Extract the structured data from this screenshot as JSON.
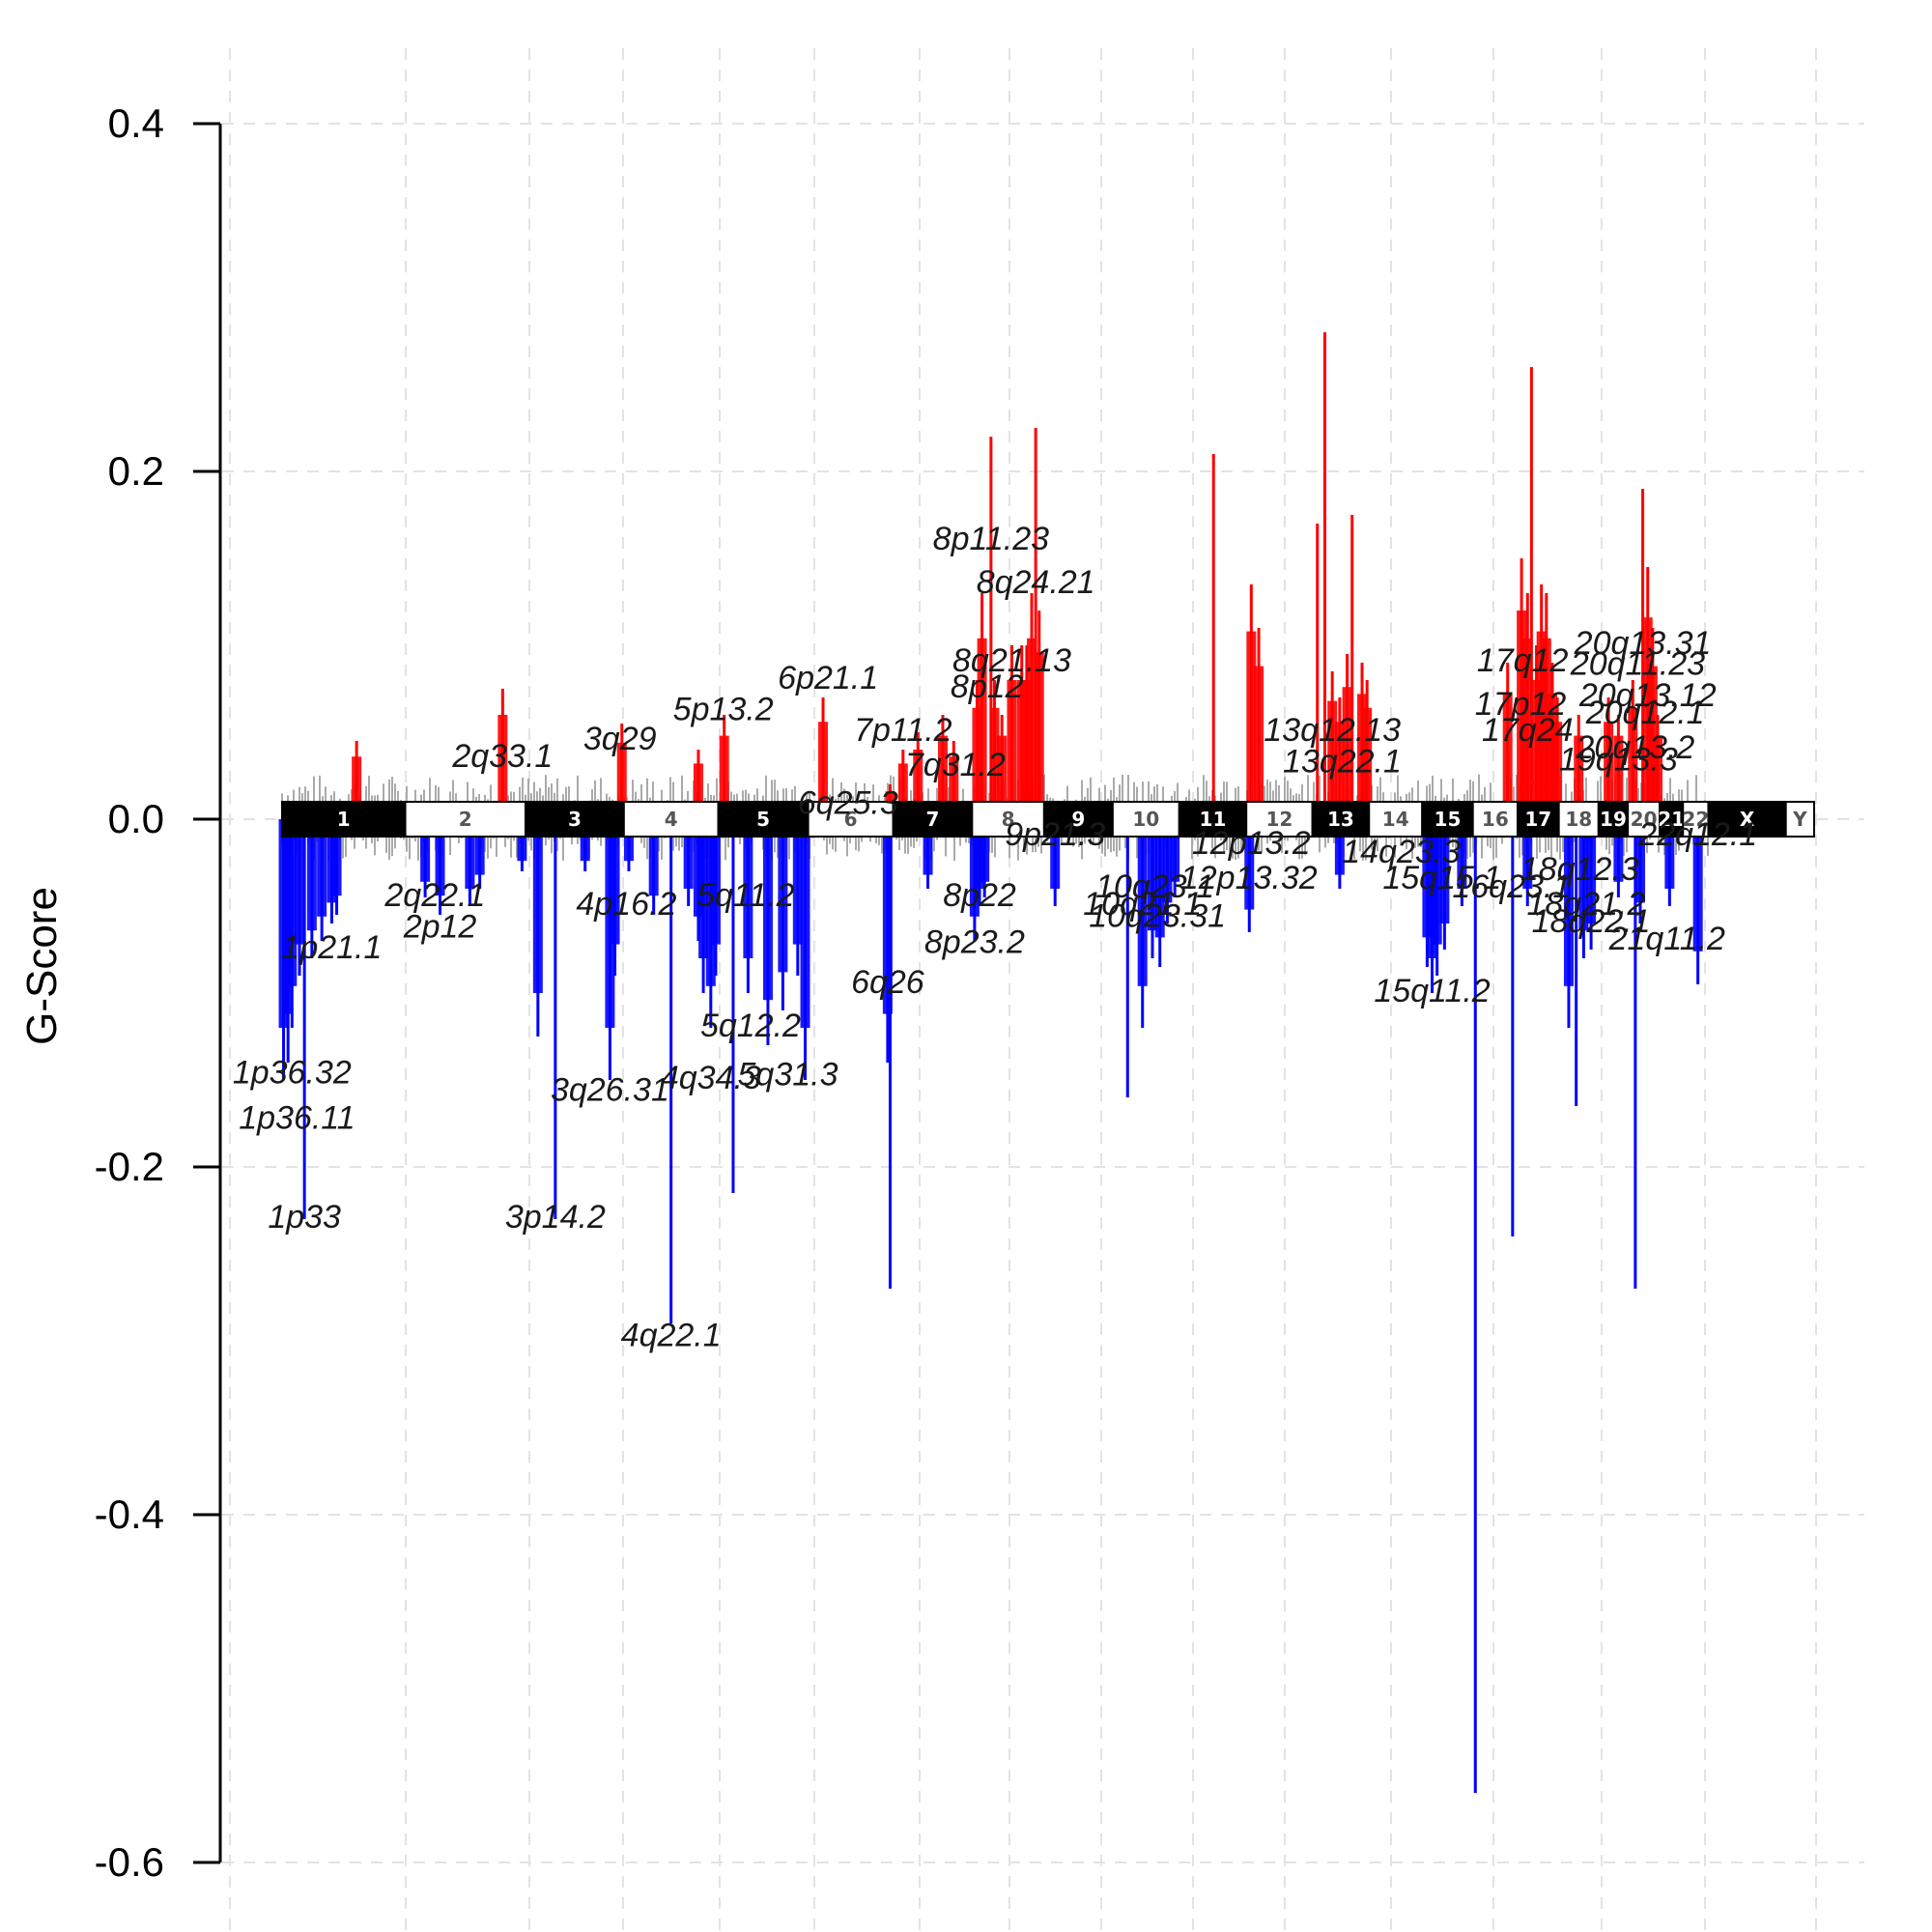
{
  "chart_data": {
    "type": "bar",
    "title": "",
    "xlabel": "",
    "ylabel": "G-Score",
    "ylim": [
      -0.6,
      0.4
    ],
    "yticks": [
      "0.4",
      "0.2",
      "0.0",
      "-0.2",
      "-0.4",
      "-0.6"
    ],
    "grid": true,
    "colors": {
      "amplification": "#ff0000",
      "deletion": "#0000ff",
      "background": "#aaaaaa",
      "band_dark": "#000000",
      "band_light": "#ffffff"
    },
    "chromosomes": [
      {
        "name": "1",
        "size": 248
      },
      {
        "name": "2",
        "size": 242
      },
      {
        "name": "3",
        "size": 198
      },
      {
        "name": "4",
        "size": 190
      },
      {
        "name": "5",
        "size": 181
      },
      {
        "name": "6",
        "size": 171
      },
      {
        "name": "7",
        "size": 159
      },
      {
        "name": "8",
        "size": 145
      },
      {
        "name": "9",
        "size": 138
      },
      {
        "name": "10",
        "size": 134
      },
      {
        "name": "11",
        "size": 135
      },
      {
        "name": "12",
        "size": 133
      },
      {
        "name": "13",
        "size": 114
      },
      {
        "name": "14",
        "size": 107
      },
      {
        "name": "15",
        "size": 102
      },
      {
        "name": "16",
        "size": 90
      },
      {
        "name": "17",
        "size": 83
      },
      {
        "name": "18",
        "size": 80
      },
      {
        "name": "19",
        "size": 59
      },
      {
        "name": "20",
        "size": 64
      },
      {
        "name": "21",
        "size": 47
      },
      {
        "name": "22",
        "size": 51
      },
      {
        "name": "X",
        "size": 156
      },
      {
        "name": "Y",
        "size": 57
      }
    ],
    "series": [
      {
        "name": "Amplification",
        "bars": [
          {
            "chr": "1",
            "pos": 150,
            "value": 0.045
          },
          {
            "chr": "2",
            "pos": 196,
            "value": 0.075
          },
          {
            "chr": "3",
            "pos": 194,
            "value": 0.055
          },
          {
            "chr": "4",
            "pos": 150,
            "value": 0.04
          },
          {
            "chr": "5",
            "pos": 12,
            "value": 0.06
          },
          {
            "chr": "6",
            "pos": 30,
            "value": 0.07
          },
          {
            "chr": "6",
            "pos": 165,
            "value": 0.02
          },
          {
            "chr": "7",
            "pos": 20,
            "value": 0.04
          },
          {
            "chr": "7",
            "pos": 50,
            "value": 0.05
          },
          {
            "chr": "7",
            "pos": 100,
            "value": 0.06
          },
          {
            "chr": "7",
            "pos": 122,
            "value": 0.045
          },
          {
            "chr": "8",
            "pos": 10,
            "value": 0.08
          },
          {
            "chr": "8",
            "pos": 20,
            "value": 0.13
          },
          {
            "chr": "8",
            "pos": 38,
            "value": 0.22
          },
          {
            "chr": "8",
            "pos": 45,
            "value": 0.08
          },
          {
            "chr": "8",
            "pos": 60,
            "value": 0.06
          },
          {
            "chr": "8",
            "pos": 80,
            "value": 0.1
          },
          {
            "chr": "8",
            "pos": 100,
            "value": 0.1
          },
          {
            "chr": "8",
            "pos": 110,
            "value": 0.1
          },
          {
            "chr": "8",
            "pos": 120,
            "value": 0.13
          },
          {
            "chr": "8",
            "pos": 128,
            "value": 0.225
          },
          {
            "chr": "8",
            "pos": 135,
            "value": 0.12
          },
          {
            "chr": "11",
            "pos": 69,
            "value": 0.21
          },
          {
            "chr": "12",
            "pos": 10,
            "value": 0.135
          },
          {
            "chr": "12",
            "pos": 25,
            "value": 0.11
          },
          {
            "chr": "13",
            "pos": 10,
            "value": 0.17
          },
          {
            "chr": "13",
            "pos": 25,
            "value": 0.28
          },
          {
            "chr": "13",
            "pos": 40,
            "value": 0.085
          },
          {
            "chr": "13",
            "pos": 55,
            "value": 0.07
          },
          {
            "chr": "13",
            "pos": 70,
            "value": 0.095
          },
          {
            "chr": "13",
            "pos": 80,
            "value": 0.175
          },
          {
            "chr": "13",
            "pos": 100,
            "value": 0.09
          },
          {
            "chr": "13",
            "pos": 110,
            "value": 0.08
          },
          {
            "chr": "16",
            "pos": 70,
            "value": 0.09
          },
          {
            "chr": "17",
            "pos": 8,
            "value": 0.15
          },
          {
            "chr": "17",
            "pos": 20,
            "value": 0.13
          },
          {
            "chr": "17",
            "pos": 28,
            "value": 0.26
          },
          {
            "chr": "17",
            "pos": 38,
            "value": 0.1
          },
          {
            "chr": "17",
            "pos": 48,
            "value": 0.135
          },
          {
            "chr": "17",
            "pos": 58,
            "value": 0.13
          },
          {
            "chr": "17",
            "pos": 70,
            "value": 0.09
          },
          {
            "chr": "17",
            "pos": 80,
            "value": 0.07
          },
          {
            "chr": "18",
            "pos": 40,
            "value": 0.06
          },
          {
            "chr": "19",
            "pos": 20,
            "value": 0.07
          },
          {
            "chr": "19",
            "pos": 40,
            "value": 0.06
          },
          {
            "chr": "20",
            "pos": 10,
            "value": 0.08
          },
          {
            "chr": "20",
            "pos": 30,
            "value": 0.19
          },
          {
            "chr": "20",
            "pos": 40,
            "value": 0.145
          },
          {
            "chr": "20",
            "pos": 50,
            "value": 0.11
          },
          {
            "chr": "20",
            "pos": 60,
            "value": 0.06
          }
        ]
      },
      {
        "name": "Deletion",
        "bars": [
          {
            "chr": "1",
            "pos": 3,
            "value": -0.15
          },
          {
            "chr": "1",
            "pos": 12,
            "value": -0.14
          },
          {
            "chr": "1",
            "pos": 20,
            "value": -0.12
          },
          {
            "chr": "1",
            "pos": 35,
            "value": -0.09
          },
          {
            "chr": "1",
            "pos": 45,
            "value": -0.23
          },
          {
            "chr": "1",
            "pos": 60,
            "value": -0.08
          },
          {
            "chr": "1",
            "pos": 80,
            "value": -0.07
          },
          {
            "chr": "1",
            "pos": 100,
            "value": -0.06
          },
          {
            "chr": "1",
            "pos": 110,
            "value": -0.055
          },
          {
            "chr": "2",
            "pos": 40,
            "value": -0.045
          },
          {
            "chr": "2",
            "pos": 70,
            "value": -0.055
          },
          {
            "chr": "2",
            "pos": 130,
            "value": -0.05
          },
          {
            "chr": "2",
            "pos": 150,
            "value": -0.04
          },
          {
            "chr": "2",
            "pos": 235,
            "value": -0.03
          },
          {
            "chr": "3",
            "pos": 25,
            "value": -0.125
          },
          {
            "chr": "3",
            "pos": 60,
            "value": -0.23
          },
          {
            "chr": "3",
            "pos": 120,
            "value": -0.03
          },
          {
            "chr": "3",
            "pos": 170,
            "value": -0.15
          },
          {
            "chr": "3",
            "pos": 180,
            "value": -0.09
          },
          {
            "chr": "4",
            "pos": 10,
            "value": -0.03
          },
          {
            "chr": "4",
            "pos": 60,
            "value": -0.055
          },
          {
            "chr": "4",
            "pos": 95,
            "value": -0.29
          },
          {
            "chr": "4",
            "pos": 130,
            "value": -0.05
          },
          {
            "chr": "4",
            "pos": 150,
            "value": -0.07
          },
          {
            "chr": "4",
            "pos": 160,
            "value": -0.1
          },
          {
            "chr": "4",
            "pos": 175,
            "value": -0.12
          },
          {
            "chr": "4",
            "pos": 185,
            "value": -0.09
          },
          {
            "chr": "5",
            "pos": 30,
            "value": -0.215
          },
          {
            "chr": "5",
            "pos": 60,
            "value": -0.1
          },
          {
            "chr": "5",
            "pos": 100,
            "value": -0.13
          },
          {
            "chr": "5",
            "pos": 130,
            "value": -0.11
          },
          {
            "chr": "5",
            "pos": 160,
            "value": -0.09
          },
          {
            "chr": "5",
            "pos": 175,
            "value": -0.15
          },
          {
            "chr": "6",
            "pos": 165,
            "value": -0.27
          },
          {
            "chr": "6",
            "pos": 160,
            "value": -0.14
          },
          {
            "chr": "7",
            "pos": 70,
            "value": -0.04
          },
          {
            "chr": "8",
            "pos": 5,
            "value": -0.07
          },
          {
            "chr": "8",
            "pos": 15,
            "value": -0.05
          },
          {
            "chr": "8",
            "pos": 25,
            "value": -0.045
          },
          {
            "chr": "9",
            "pos": 22,
            "value": -0.05
          },
          {
            "chr": "10",
            "pos": 30,
            "value": -0.16
          },
          {
            "chr": "10",
            "pos": 60,
            "value": -0.12
          },
          {
            "chr": "10",
            "pos": 80,
            "value": -0.08
          },
          {
            "chr": "10",
            "pos": 95,
            "value": -0.085
          },
          {
            "chr": "10",
            "pos": 110,
            "value": -0.06
          },
          {
            "chr": "10",
            "pos": 125,
            "value": -0.045
          },
          {
            "chr": "12",
            "pos": 6,
            "value": -0.065
          },
          {
            "chr": "13",
            "pos": 55,
            "value": -0.04
          },
          {
            "chr": "15",
            "pos": 10,
            "value": -0.085
          },
          {
            "chr": "15",
            "pos": 20,
            "value": -0.1
          },
          {
            "chr": "15",
            "pos": 30,
            "value": -0.09
          },
          {
            "chr": "15",
            "pos": 45,
            "value": -0.075
          },
          {
            "chr": "15",
            "pos": 80,
            "value": -0.05
          },
          {
            "chr": "16",
            "pos": 5,
            "value": -0.56
          },
          {
            "chr": "16",
            "pos": 80,
            "value": -0.24
          },
          {
            "chr": "17",
            "pos": 20,
            "value": -0.05
          },
          {
            "chr": "18",
            "pos": 20,
            "value": -0.12
          },
          {
            "chr": "18",
            "pos": 35,
            "value": -0.165
          },
          {
            "chr": "18",
            "pos": 50,
            "value": -0.08
          },
          {
            "chr": "18",
            "pos": 65,
            "value": -0.075
          },
          {
            "chr": "19",
            "pos": 40,
            "value": -0.045
          },
          {
            "chr": "20",
            "pos": 15,
            "value": -0.27
          },
          {
            "chr": "20",
            "pos": 25,
            "value": -0.06
          },
          {
            "chr": "21",
            "pos": 20,
            "value": -0.05
          },
          {
            "chr": "22",
            "pos": 30,
            "value": -0.095
          }
        ]
      }
    ],
    "annotations": [
      {
        "text": "8p11.23",
        "chr": "8",
        "pos": 38,
        "y": 0.155
      },
      {
        "text": "8q24.21",
        "chr": "8",
        "pos": 128,
        "y": 0.13
      },
      {
        "text": "8q21.13",
        "chr": "8",
        "pos": 80,
        "y": 0.085
      },
      {
        "text": "8p12",
        "chr": "8",
        "pos": 30,
        "y": 0.07
      },
      {
        "text": "6p21.1",
        "chr": "6",
        "pos": 40,
        "y": 0.075
      },
      {
        "text": "5p13.2",
        "chr": "5",
        "pos": 10,
        "y": 0.057
      },
      {
        "text": "7p11.2",
        "chr": "7",
        "pos": 20,
        "y": 0.045
      },
      {
        "text": "7q31.2",
        "chr": "7",
        "pos": 125,
        "y": 0.025
      },
      {
        "text": "3q29",
        "chr": "3",
        "pos": 190,
        "y": 0.04
      },
      {
        "text": "2q33.1",
        "chr": "2",
        "pos": 196,
        "y": 0.03
      },
      {
        "text": "6q25.3",
        "chr": "6",
        "pos": 80,
        "y": 0.003
      },
      {
        "text": "13q12.13",
        "chr": "13",
        "pos": 40,
        "y": 0.045
      },
      {
        "text": "13q22.1",
        "chr": "13",
        "pos": 60,
        "y": 0.027
      },
      {
        "text": "17q12",
        "chr": "17",
        "pos": 10,
        "y": 0.085
      },
      {
        "text": "17p12",
        "chr": "17",
        "pos": 6,
        "y": 0.06
      },
      {
        "text": "17q24",
        "chr": "17",
        "pos": 20,
        "y": 0.045
      },
      {
        "text": "20q13.31",
        "chr": "20",
        "pos": 30,
        "y": 0.095
      },
      {
        "text": "20q11.23",
        "chr": "20",
        "pos": 20,
        "y": 0.083
      },
      {
        "text": "20q13.12",
        "chr": "20",
        "pos": 40,
        "y": 0.065
      },
      {
        "text": "20q12.1",
        "chr": "20",
        "pos": 35,
        "y": 0.055
      },
      {
        "text": "20q13.2",
        "chr": "20",
        "pos": 15,
        "y": 0.035
      },
      {
        "text": "19q13.3",
        "chr": "19",
        "pos": 40,
        "y": 0.028
      },
      {
        "text": "1p21.1",
        "chr": "1",
        "pos": 100,
        "y": -0.08
      },
      {
        "text": "1p36.32",
        "chr": "1",
        "pos": 20,
        "y": -0.152
      },
      {
        "text": "1p36.11",
        "chr": "1",
        "pos": 30,
        "y": -0.178
      },
      {
        "text": "1p33",
        "chr": "1",
        "pos": 45,
        "y": -0.235
      },
      {
        "text": "2q22.1",
        "chr": "2",
        "pos": 60,
        "y": -0.05
      },
      {
        "text": "2p12",
        "chr": "2",
        "pos": 70,
        "y": -0.068
      },
      {
        "text": "3p14.2",
        "chr": "3",
        "pos": 60,
        "y": -0.235
      },
      {
        "text": "3q26.31",
        "chr": "3",
        "pos": 170,
        "y": -0.162
      },
      {
        "text": "4p16.2",
        "chr": "4",
        "pos": 5,
        "y": -0.055
      },
      {
        "text": "4q22.1",
        "chr": "4",
        "pos": 95,
        "y": -0.303
      },
      {
        "text": "4q34.3",
        "chr": "4",
        "pos": 175,
        "y": -0.155
      },
      {
        "text": "5q11.2",
        "chr": "5",
        "pos": 55,
        "y": -0.05
      },
      {
        "text": "5q12.2",
        "chr": "5",
        "pos": 65,
        "y": -0.125
      },
      {
        "text": "5q31.3",
        "chr": "5",
        "pos": 140,
        "y": -0.153
      },
      {
        "text": "6q26",
        "chr": "6",
        "pos": 160,
        "y": -0.1
      },
      {
        "text": "8p22",
        "chr": "8",
        "pos": 15,
        "y": -0.05
      },
      {
        "text": "8p23.2",
        "chr": "8",
        "pos": 5,
        "y": -0.077
      },
      {
        "text": "9p21.3",
        "chr": "9",
        "pos": 22,
        "y": -0.015
      },
      {
        "text": "10q23.1",
        "chr": "10",
        "pos": 85,
        "y": -0.045
      },
      {
        "text": "10q21.1",
        "chr": "10",
        "pos": 60,
        "y": -0.055
      },
      {
        "text": "10q23.31",
        "chr": "10",
        "pos": 90,
        "y": -0.062
      },
      {
        "text": "12p13.2",
        "chr": "12",
        "pos": 10,
        "y": -0.02
      },
      {
        "text": "12p13.32",
        "chr": "12",
        "pos": 5,
        "y": -0.04
      },
      {
        "text": "14q23.3",
        "chr": "14",
        "pos": 65,
        "y": -0.025
      },
      {
        "text": "15q11.2",
        "chr": "15",
        "pos": 20,
        "y": -0.105
      },
      {
        "text": "15q15.1",
        "chr": "15",
        "pos": 40,
        "y": -0.04
      },
      {
        "text": "16q23.1",
        "chr": "16",
        "pos": 78,
        "y": -0.045
      },
      {
        "text": "18q12.3",
        "chr": "18",
        "pos": 42,
        "y": -0.035
      },
      {
        "text": "18q21.2",
        "chr": "18",
        "pos": 55,
        "y": -0.055
      },
      {
        "text": "18q22.1",
        "chr": "18",
        "pos": 65,
        "y": -0.065
      },
      {
        "text": "21q11.2",
        "chr": "21",
        "pos": 15,
        "y": -0.075
      },
      {
        "text": "22q12.1",
        "chr": "22",
        "pos": 30,
        "y": -0.015
      }
    ]
  }
}
